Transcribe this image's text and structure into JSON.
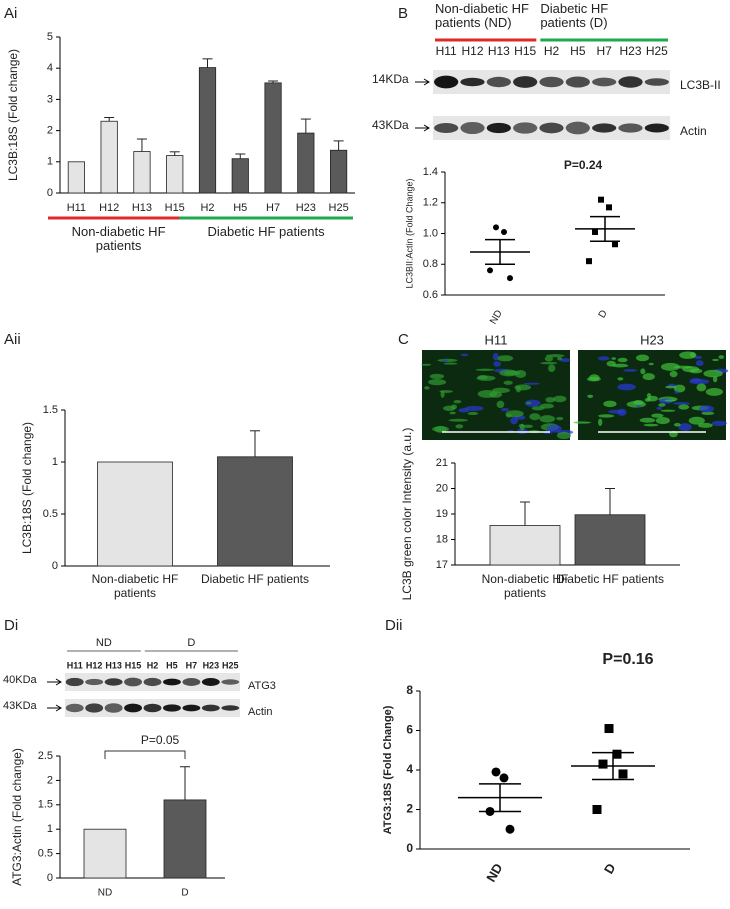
{
  "chart_data": [
    {
      "panel": "Ai",
      "type": "bar",
      "ylabel": "LC3B:18S (Fold change)",
      "categories": [
        "H11",
        "H12",
        "H13",
        "H15",
        "H2",
        "H5",
        "H7",
        "H23",
        "H25"
      ],
      "values": [
        1,
        2.3,
        1.33,
        1.2,
        4.02,
        1.1,
        3.53,
        1.92,
        1.37
      ],
      "errors": [
        0,
        0.12,
        0.4,
        0.12,
        0.28,
        0.15,
        0.06,
        0.45,
        0.3
      ],
      "colors": [
        "#e4e4e4",
        "#e4e4e4",
        "#e4e4e4",
        "#e4e4e4",
        "#5a5a5a",
        "#5a5a5a",
        "#5a5a5a",
        "#5a5a5a",
        "#5a5a5a"
      ],
      "ylim": [
        0,
        5
      ],
      "yticks": [
        0,
        1,
        2,
        3,
        4,
        5
      ],
      "groups": [
        {
          "label": "Non-diabetic HF patients",
          "color": "#e02828"
        },
        {
          "label": "Diabetic HF patients",
          "color": "#1fa850"
        }
      ]
    },
    {
      "panel": "B",
      "type": "dotplot",
      "ylabel": "LC3BII:Actin (Fold Change)",
      "categories": [
        "ND",
        "D"
      ],
      "points": [
        [
          1.04,
          1.01,
          0.76,
          0.71
        ],
        [
          1.22,
          1.17,
          1.01,
          0.93,
          0.82
        ]
      ],
      "means": [
        0.88,
        1.03
      ],
      "sem": [
        0.08,
        0.08
      ],
      "markers": [
        "circle",
        "square"
      ],
      "ylim": [
        0.6,
        1.4
      ],
      "yticks": [
        0.6,
        0.8,
        {
          "value": 1.0,
          "label": "1.0"
        },
        1.2,
        1.4
      ],
      "annotation": "P=0.24",
      "blot": {
        "groups": [
          {
            "label": "Non-diabetic HF patients (ND)",
            "color": "#e02828"
          },
          {
            "label": "Diabetic HF patients (D)",
            "color": "#1fa850"
          }
        ],
        "lanes": [
          "H11",
          "H12",
          "H13",
          "H15",
          "H2",
          "H5",
          "H7",
          "H23",
          "H25"
        ],
        "bands": [
          {
            "kda": "14KDa",
            "name": "LC3B-II"
          },
          {
            "kda": "43KDa",
            "name": "Actin"
          }
        ]
      }
    },
    {
      "panel": "Aii",
      "type": "bar",
      "ylabel": "LC3B:18S (Fold change)",
      "categories": [
        "Non-diabetic HF patients",
        "Diabetic HF patients"
      ],
      "values": [
        1,
        1.05
      ],
      "errors": [
        0,
        0.25
      ],
      "colors": [
        "#e4e4e4",
        "#5a5a5a"
      ],
      "ylim": [
        0,
        1.5
      ],
      "yticks": [
        0,
        0.5,
        1,
        1.5
      ]
    },
    {
      "panel": "C",
      "type": "bar",
      "ylabel": "LC3B green color Intensity (a.u.)",
      "images": [
        "H11",
        "H23"
      ],
      "categories": [
        "Non-diabetic HF patients",
        "Diabetic HF patients"
      ],
      "values": [
        18.55,
        18.97
      ],
      "errors": [
        0.92,
        1.03
      ],
      "colors": [
        "#e4e4e4",
        "#5a5a5a"
      ],
      "ylim": [
        17,
        21
      ],
      "yticks": [
        17,
        18,
        19,
        20,
        21
      ]
    },
    {
      "panel": "Di",
      "type": "bar",
      "ylabel": "ATG3:Actin (Fold change)",
      "categories": [
        "ND",
        "D"
      ],
      "values": [
        1,
        1.6
      ],
      "errors": [
        0,
        0.68
      ],
      "colors": [
        "#e4e4e4",
        "#5a5a5a"
      ],
      "ylim": [
        0,
        2.5
      ],
      "yticks": [
        0,
        0.5,
        1,
        1.5,
        2,
        2.5
      ],
      "annotation": "P=0.05",
      "blot": {
        "groups": [
          {
            "label": "ND",
            "color": "#333333"
          },
          {
            "label": "D",
            "color": "#333333"
          }
        ],
        "lanes": [
          "H11",
          "H12",
          "H13",
          "H15",
          "H2",
          "H5",
          "H7",
          "H23",
          "H25"
        ],
        "bands": [
          {
            "kda": "40KDa",
            "name": "ATG3"
          },
          {
            "kda": "43KDa",
            "name": "Actin"
          }
        ]
      }
    },
    {
      "panel": "Dii",
      "type": "dotplot",
      "ylabel": "ATG3:18S (Fold Change)",
      "categories": [
        "ND",
        "D"
      ],
      "points": [
        [
          3.9,
          3.6,
          1.9,
          1.0
        ],
        [
          6.1,
          4.8,
          4.3,
          3.8,
          2.0
        ]
      ],
      "means": [
        2.6,
        4.2
      ],
      "sem": [
        0.7,
        0.68
      ],
      "markers": [
        "circle",
        "square"
      ],
      "ylim": [
        0,
        8
      ],
      "yticks": [
        0,
        2,
        4,
        6,
        8
      ],
      "annotation": "P=0.16"
    }
  ]
}
